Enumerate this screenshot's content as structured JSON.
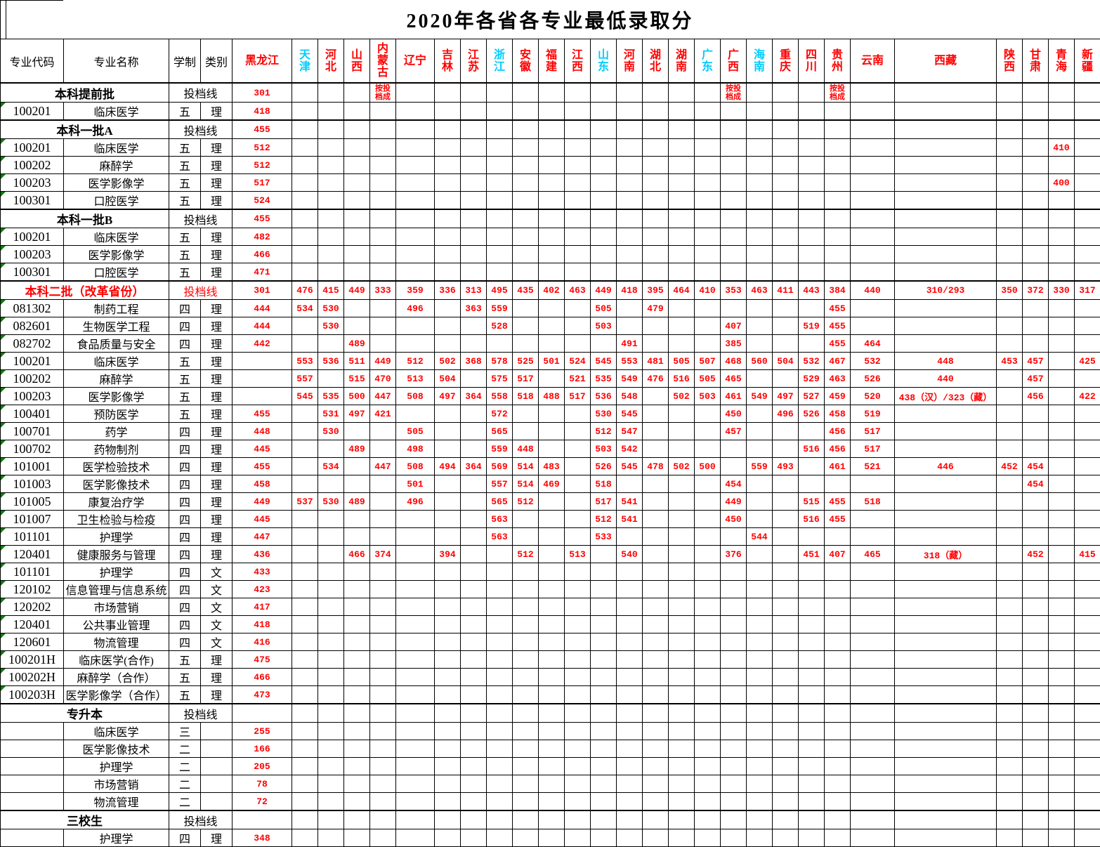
{
  "title": "2020年各省各专业最低录取分",
  "colors": {
    "score_red": "#FF0000",
    "province_red": "#FF0000",
    "province_cyan": "#00CCFF",
    "triangle_green": "#008000"
  },
  "table": {
    "headers": {
      "code": "专业代码",
      "name": "专业名称",
      "years": "学制",
      "category": "类别"
    },
    "note_text": "按投档成",
    "provinces": [
      {
        "name": "黑龙江"
      },
      {
        "name": "天津",
        "cyan": true
      },
      {
        "name": "河北"
      },
      {
        "name": "山西"
      },
      {
        "name": "内蒙古"
      },
      {
        "name": "辽宁"
      },
      {
        "name": "吉林"
      },
      {
        "name": "江苏"
      },
      {
        "name": "浙江",
        "cyan": true
      },
      {
        "name": "安徽"
      },
      {
        "name": "福建"
      },
      {
        "name": "江西"
      },
      {
        "name": "山东",
        "cyan": true
      },
      {
        "name": "河南"
      },
      {
        "name": "湖北"
      },
      {
        "name": "湖南"
      },
      {
        "name": "广东",
        "cyan": true
      },
      {
        "name": "广西"
      },
      {
        "name": "海南",
        "cyan": true
      },
      {
        "name": "重庆"
      },
      {
        "name": "四川"
      },
      {
        "name": "贵州"
      },
      {
        "name": "云南"
      },
      {
        "name": "西藏"
      },
      {
        "name": "陕西"
      },
      {
        "name": "甘肃"
      },
      {
        "name": "青海"
      },
      {
        "name": "新疆"
      }
    ],
    "rows": [
      {
        "section": true,
        "name": "本科提前批",
        "years_cat": "投档线",
        "scores": {
          "黑龙江": "301",
          "内蒙古": "按投档成",
          "广西": "按投档成",
          "贵州": "按投档成"
        }
      },
      {
        "code": "100201",
        "name": "临床医学",
        "years": "五",
        "cat": "理",
        "scores": {
          "黑龙江": "418"
        }
      },
      {
        "section": true,
        "name": "本科一批A",
        "years_cat": "投档线",
        "scores": {
          "黑龙江": "455"
        }
      },
      {
        "code": "100201",
        "name": "临床医学",
        "years": "五",
        "cat": "理",
        "scores": {
          "黑龙江": "512",
          "青海": "410"
        }
      },
      {
        "code": "100202",
        "name": "麻醉学",
        "years": "五",
        "cat": "理",
        "scores": {
          "黑龙江": "512"
        }
      },
      {
        "code": "100203",
        "name": "医学影像学",
        "years": "五",
        "cat": "理",
        "scores": {
          "黑龙江": "517",
          "青海": "400"
        }
      },
      {
        "code": "100301",
        "name": "口腔医学",
        "years": "五",
        "cat": "理",
        "scores": {
          "黑龙江": "524"
        }
      },
      {
        "section": true,
        "name": "本科一批B",
        "years_cat": "投档线",
        "scores": {
          "黑龙江": "455"
        }
      },
      {
        "code": "100201",
        "name": "临床医学",
        "years": "五",
        "cat": "理",
        "scores": {
          "黑龙江": "482"
        }
      },
      {
        "code": "100203",
        "name": "医学影像学",
        "years": "五",
        "cat": "理",
        "scores": {
          "黑龙江": "466"
        }
      },
      {
        "code": "100301",
        "name": "口腔医学",
        "years": "五",
        "cat": "理",
        "scores": {
          "黑龙江": "471"
        }
      },
      {
        "section": true,
        "red": true,
        "name": "本科二批（改革省份）",
        "years_cat": "投档线",
        "scores": {
          "黑龙江": "301",
          "天津": "476",
          "河北": "415",
          "山西": "449",
          "内蒙古": "333",
          "辽宁": "359",
          "吉林": "336",
          "江苏": "313",
          "浙江": "495",
          "安徽": "435",
          "福建": "402",
          "江西": "463",
          "山东": "449",
          "河南": "418",
          "湖北": "395",
          "湖南": "464",
          "广东": "410",
          "广西": "353",
          "海南": "463",
          "重庆": "411",
          "四川": "443",
          "贵州": "384",
          "云南": "440",
          "西藏": "310/293",
          "陕西": "350",
          "甘肃": "372",
          "青海": "330",
          "新疆": "317"
        }
      },
      {
        "code": "081302",
        "name": "制药工程",
        "years": "四",
        "cat": "理",
        "scores": {
          "黑龙江": "444",
          "天津": "534",
          "河北": "530",
          "辽宁": "496",
          "江苏": "363",
          "浙江": "559",
          "山东": "505",
          "湖北": "479",
          "贵州": "455"
        }
      },
      {
        "code": "082601",
        "name": "生物医学工程",
        "years": "四",
        "cat": "理",
        "scores": {
          "黑龙江": "444",
          "河北": "530",
          "浙江": "528",
          "山东": "503",
          "广西": "407",
          "四川": "519",
          "贵州": "455"
        }
      },
      {
        "code": "082702",
        "name": "食品质量与安全",
        "years": "四",
        "cat": "理",
        "scores": {
          "黑龙江": "442",
          "山西": "489",
          "河南": "491",
          "广西": "385",
          "贵州": "455",
          "云南": "464"
        }
      },
      {
        "code": "100201",
        "name": "临床医学",
        "years": "五",
        "cat": "理",
        "scores": {
          "天津": "553",
          "河北": "536",
          "山西": "511",
          "内蒙古": "449",
          "辽宁": "512",
          "吉林": "502",
          "江苏": "368",
          "浙江": "578",
          "安徽": "525",
          "福建": "501",
          "江西": "524",
          "山东": "545",
          "河南": "553",
          "湖北": "481",
          "湖南": "505",
          "广东": "507",
          "广西": "468",
          "海南": "560",
          "重庆": "504",
          "四川": "532",
          "贵州": "467",
          "云南": "532",
          "西藏": "448",
          "陕西": "453",
          "甘肃": "457",
          "新疆": "425"
        }
      },
      {
        "code": "100202",
        "name": "麻醉学",
        "years": "五",
        "cat": "理",
        "scores": {
          "天津": "557",
          "山西": "515",
          "内蒙古": "470",
          "辽宁": "513",
          "吉林": "504",
          "浙江": "575",
          "安徽": "517",
          "江西": "521",
          "山东": "535",
          "河南": "549",
          "湖北": "476",
          "湖南": "516",
          "广东": "505",
          "广西": "465",
          "四川": "529",
          "贵州": "463",
          "云南": "526",
          "西藏": "440",
          "甘肃": "457"
        }
      },
      {
        "code": "100203",
        "name": "医学影像学",
        "years": "五",
        "cat": "理",
        "scores": {
          "天津": "545",
          "河北": "535",
          "山西": "500",
          "内蒙古": "447",
          "辽宁": "508",
          "吉林": "497",
          "江苏": "364",
          "浙江": "558",
          "安徽": "518",
          "福建": "488",
          "江西": "517",
          "山东": "536",
          "河南": "548",
          "湖南": "502",
          "广东": "503",
          "广西": "461",
          "海南": "549",
          "重庆": "497",
          "四川": "527",
          "贵州": "459",
          "云南": "520",
          "西藏": "438（汉）/323（藏）",
          "甘肃": "456",
          "新疆": "422"
        }
      },
      {
        "code": "100401",
        "name": "预防医学",
        "years": "五",
        "cat": "理",
        "scores": {
          "黑龙江": "455",
          "河北": "531",
          "山西": "497",
          "内蒙古": "421",
          "浙江": "572",
          "山东": "530",
          "河南": "545",
          "广西": "450",
          "重庆": "496",
          "四川": "526",
          "贵州": "458",
          "云南": "519"
        }
      },
      {
        "code": "100701",
        "name": "药学",
        "years": "四",
        "cat": "理",
        "scores": {
          "黑龙江": "448",
          "河北": "530",
          "辽宁": "505",
          "浙江": "565",
          "山东": "512",
          "河南": "547",
          "广西": "457",
          "贵州": "456",
          "云南": "517"
        }
      },
      {
        "code": "100702",
        "name": "药物制剂",
        "years": "四",
        "cat": "理",
        "scores": {
          "黑龙江": "445",
          "山西": "489",
          "辽宁": "498",
          "浙江": "559",
          "安徽": "448",
          "山东": "503",
          "河南": "542",
          "四川": "516",
          "贵州": "456",
          "云南": "517"
        }
      },
      {
        "code": "101001",
        "name": "医学检验技术",
        "years": "四",
        "cat": "理",
        "scores": {
          "黑龙江": "455",
          "河北": "534",
          "内蒙古": "447",
          "辽宁": "508",
          "吉林": "494",
          "江苏": "364",
          "浙江": "569",
          "安徽": "514",
          "福建": "483",
          "山东": "526",
          "河南": "545",
          "湖北": "478",
          "湖南": "502",
          "广东": "500",
          "海南": "559",
          "重庆": "493",
          "贵州": "461",
          "云南": "521",
          "西藏": "446",
          "陕西": "452",
          "甘肃": "454"
        }
      },
      {
        "code": "101003",
        "name": "医学影像技术",
        "years": "四",
        "cat": "理",
        "scores": {
          "黑龙江": "458",
          "辽宁": "501",
          "浙江": "557",
          "安徽": "514",
          "福建": "469",
          "山东": "518",
          "广西": "454",
          "甘肃": "454"
        }
      },
      {
        "code": "101005",
        "name": "康复治疗学",
        "years": "四",
        "cat": "理",
        "scores": {
          "黑龙江": "449",
          "天津": "537",
          "河北": "530",
          "山西": "489",
          "辽宁": "496",
          "浙江": "565",
          "安徽": "512",
          "山东": "517",
          "河南": "541",
          "广西": "449",
          "四川": "515",
          "贵州": "455",
          "云南": "518"
        }
      },
      {
        "code": "101007",
        "name": "卫生检验与检疫",
        "years": "四",
        "cat": "理",
        "scores": {
          "黑龙江": "445",
          "浙江": "563",
          "山东": "512",
          "河南": "541",
          "广西": "450",
          "四川": "516",
          "贵州": "455"
        }
      },
      {
        "code": "101101",
        "name": "护理学",
        "years": "四",
        "cat": "理",
        "scores": {
          "黑龙江": "447",
          "浙江": "563",
          "山东": "533",
          "海南": "544"
        }
      },
      {
        "code": "120401",
        "name": "健康服务与管理",
        "years": "四",
        "cat": "理",
        "scores": {
          "黑龙江": "436",
          "山西": "466",
          "内蒙古": "374",
          "吉林": "394",
          "安徽": "512",
          "江西": "513",
          "河南": "540",
          "广西": "376",
          "四川": "451",
          "贵州": "407",
          "云南": "465",
          "西藏": "318（藏）",
          "甘肃": "452",
          "新疆": "415"
        }
      },
      {
        "code": "101101",
        "name": "护理学",
        "years": "四",
        "cat": "文",
        "scores": {
          "黑龙江": "433"
        }
      },
      {
        "code": "120102",
        "name": "信息管理与信息系统",
        "years": "四",
        "cat": "文",
        "scores": {
          "黑龙江": "423"
        }
      },
      {
        "code": "120202",
        "name": "市场营销",
        "years": "四",
        "cat": "文",
        "scores": {
          "黑龙江": "417"
        }
      },
      {
        "code": "120401",
        "name": "公共事业管理",
        "years": "四",
        "cat": "文",
        "scores": {
          "黑龙江": "418"
        }
      },
      {
        "code": "120601",
        "name": "物流管理",
        "years": "四",
        "cat": "文",
        "scores": {
          "黑龙江": "416"
        }
      },
      {
        "code": "100201H",
        "name": "临床医学(合作)",
        "years": "五",
        "cat": "理",
        "scores": {
          "黑龙江": "475"
        }
      },
      {
        "code": "100202H",
        "name": "麻醉学（合作）",
        "years": "五",
        "cat": "理",
        "scores": {
          "黑龙江": "466"
        }
      },
      {
        "code": "100203H",
        "name": "医学影像学（合作）",
        "years": "五",
        "cat": "理",
        "scores": {
          "黑龙江": "473"
        }
      },
      {
        "section": true,
        "name": "专升本",
        "years_cat": "投档线",
        "scores": {}
      },
      {
        "code": "",
        "name": "临床医学",
        "years": "三",
        "cat": "",
        "scores": {
          "黑龙江": "255"
        }
      },
      {
        "code": "",
        "name": "医学影像技术",
        "years": "二",
        "cat": "",
        "scores": {
          "黑龙江": "166"
        }
      },
      {
        "code": "",
        "name": "护理学",
        "years": "二",
        "cat": "",
        "scores": {
          "黑龙江": "205"
        }
      },
      {
        "code": "",
        "name": "市场营销",
        "years": "二",
        "cat": "",
        "scores": {
          "黑龙江": "78"
        }
      },
      {
        "code": "",
        "name": "物流管理",
        "years": "二",
        "cat": "",
        "scores": {
          "黑龙江": "72"
        }
      },
      {
        "section": true,
        "name": "三校生",
        "years_cat": "投档线",
        "scores": {}
      },
      {
        "code": "",
        "name": "护理学",
        "years": "四",
        "cat": "理",
        "scores": {
          "黑龙江": "348"
        }
      }
    ]
  }
}
